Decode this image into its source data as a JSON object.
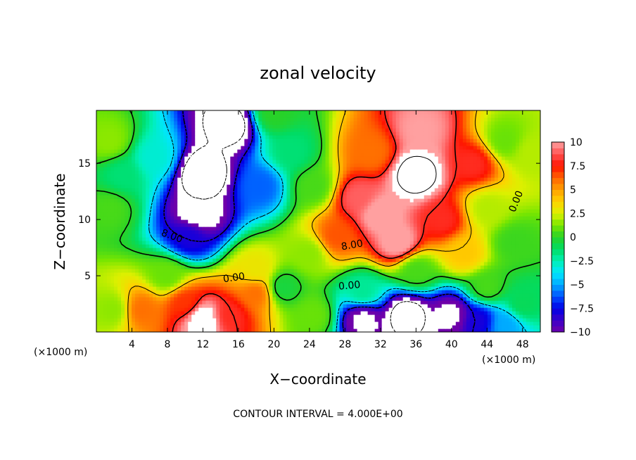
{
  "chart_data": {
    "type": "heatmap",
    "title": "zonal velocity",
    "xlabel": "X−coordinate",
    "ylabel": "Z−coordinate",
    "x_unit": "(×1000 m)",
    "y_unit": "(×1000 m)",
    "xlim": [
      0,
      50
    ],
    "ylim": [
      0,
      19.7
    ],
    "x_ticks": [
      4,
      8,
      12,
      16,
      20,
      24,
      28,
      32,
      36,
      40,
      44,
      48
    ],
    "y_ticks": [
      5,
      10,
      15
    ],
    "colorbar": {
      "range": [
        -10,
        10
      ],
      "ticks": [
        10,
        7.5,
        5,
        2.5,
        0,
        -2.5,
        -5,
        -7.5,
        -10
      ],
      "tick_labels": [
        "10",
        "7.5",
        "5",
        "2.5",
        "0",
        "−2.5",
        "−5",
        "−7.5",
        "−10"
      ]
    },
    "contour_interval": "CONTOUR INTERVAL = 4.000E+00",
    "contour_labels": [
      {
        "text": "8.00",
        "x": 8.5,
        "z": 8.5,
        "angle": 20
      },
      {
        "text": "0.00",
        "x": 15.5,
        "z": 4.8,
        "angle": -8
      },
      {
        "text": "0.00",
        "x": 28.5,
        "z": 4.1,
        "angle": -5
      },
      {
        "text": "8.00",
        "x": 28.8,
        "z": 7.7,
        "angle": -10
      },
      {
        "text": "0.00",
        "x": 47.3,
        "z": 11.6,
        "angle": -68
      }
    ],
    "features": [
      {
        "x": 20,
        "z": 19.5,
        "v": 0
      },
      {
        "x": 1.5,
        "z": 17,
        "v": 1.5
      },
      {
        "x": 1.5,
        "z": 11,
        "v": 0.5
      },
      {
        "x": 3,
        "z": 14,
        "v": -1.5
      },
      {
        "x": 6.5,
        "z": 15.5,
        "v": -3
      },
      {
        "x": 12,
        "z": 14,
        "v": -14
      },
      {
        "x": 15,
        "z": 18.5,
        "v": -13
      },
      {
        "x": 11.5,
        "z": 10.5,
        "v": -12
      },
      {
        "x": 10.5,
        "z": 8.5,
        "v": -8
      },
      {
        "x": 18.5,
        "z": 13,
        "v": -6
      },
      {
        "x": 22,
        "z": 16,
        "v": -1.5
      },
      {
        "x": 24.5,
        "z": 13,
        "v": 0.5
      },
      {
        "x": 24,
        "z": 7,
        "v": 1.5
      },
      {
        "x": 21,
        "z": 4,
        "v": -0.5
      },
      {
        "x": 8,
        "z": 5,
        "v": 1
      },
      {
        "x": 18,
        "z": 5.5,
        "v": 3
      },
      {
        "x": 18,
        "z": 3.5,
        "v": 6
      },
      {
        "x": 10,
        "z": 2.6,
        "v": 7
      },
      {
        "x": 12,
        "z": 1.2,
        "v": 12
      },
      {
        "x": 15,
        "z": 1.5,
        "v": 8
      },
      {
        "x": 5,
        "z": 2,
        "v": 6
      },
      {
        "x": 2,
        "z": 2,
        "v": 1.5
      },
      {
        "x": 27,
        "z": 8.5,
        "v": 6.5
      },
      {
        "x": 29.5,
        "z": 12,
        "v": 9
      },
      {
        "x": 32,
        "z": 10.5,
        "v": 10.5
      },
      {
        "x": 36,
        "z": 14,
        "v": 13
      },
      {
        "x": 36.5,
        "z": 18,
        "v": 10
      },
      {
        "x": 31,
        "z": 16,
        "v": 6
      },
      {
        "x": 34,
        "z": 8,
        "v": 10.5
      },
      {
        "x": 39,
        "z": 10,
        "v": 8
      },
      {
        "x": 42.5,
        "z": 15,
        "v": 8
      },
      {
        "x": 41.5,
        "z": 7,
        "v": 4
      },
      {
        "x": 44,
        "z": 11,
        "v": 2
      },
      {
        "x": 46,
        "z": 17,
        "v": 1
      },
      {
        "x": 47,
        "z": 8,
        "v": 0.3
      },
      {
        "x": 49,
        "z": 16,
        "v": 2
      },
      {
        "x": 36,
        "z": 5.5,
        "v": 0.5
      },
      {
        "x": 44,
        "z": 4,
        "v": 0.5
      },
      {
        "x": 30,
        "z": 3.5,
        "v": -2
      },
      {
        "x": 30,
        "z": 1.2,
        "v": -11
      },
      {
        "x": 35,
        "z": 1.5,
        "v": -13
      },
      {
        "x": 40,
        "z": 1.5,
        "v": -11
      },
      {
        "x": 43,
        "z": 1,
        "v": -8
      },
      {
        "x": 46,
        "z": 0.7,
        "v": -5
      },
      {
        "x": 48,
        "z": 2.5,
        "v": -1
      },
      {
        "x": 24.5,
        "z": 1.5,
        "v": 1
      }
    ]
  }
}
